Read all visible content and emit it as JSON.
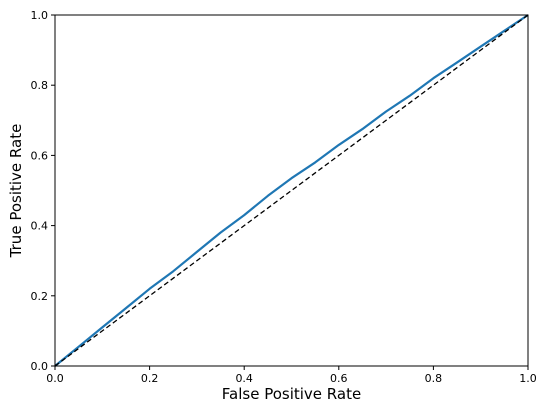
{
  "chart_data": {
    "type": "line",
    "title": "",
    "xlabel": "False Positive Rate",
    "ylabel": "True Positive Rate",
    "xlim": [
      0,
      1
    ],
    "ylim": [
      0,
      1
    ],
    "xticks": [
      "0.0",
      "0.2",
      "0.4",
      "0.6",
      "0.8",
      "1.0"
    ],
    "yticks": [
      "0.0",
      "0.2",
      "0.4",
      "0.6",
      "0.8",
      "1.0"
    ],
    "grid": false,
    "legend": "none",
    "series": [
      {
        "style": "solid",
        "color": "#1f77b4",
        "x": [
          0.0,
          0.05,
          0.1,
          0.15,
          0.2,
          0.25,
          0.3,
          0.35,
          0.4,
          0.45,
          0.5,
          0.55,
          0.6,
          0.65,
          0.7,
          0.75,
          0.8,
          0.85,
          0.9,
          0.95,
          1.0
        ],
        "y": [
          0.0,
          0.055,
          0.11,
          0.165,
          0.22,
          0.27,
          0.325,
          0.38,
          0.43,
          0.485,
          0.535,
          0.58,
          0.63,
          0.675,
          0.725,
          0.77,
          0.82,
          0.865,
          0.91,
          0.955,
          1.0
        ]
      },
      {
        "style": "dashed",
        "color": "#000000",
        "x": [
          0.0,
          1.0
        ],
        "y": [
          0.0,
          1.0
        ]
      }
    ]
  }
}
